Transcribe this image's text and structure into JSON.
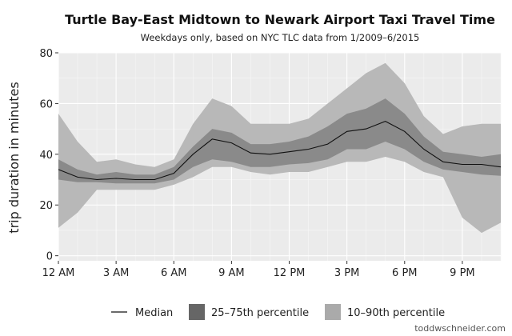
{
  "chart_data": {
    "type": "area",
    "title": "Turtle Bay-East Midtown to Newark Airport Taxi Travel Time",
    "subtitle": "Weekdays only, based on NYC TLC data from 1/2009–6/2015",
    "xlabel": "",
    "ylabel": "trip duration in minutes",
    "xlim": [
      0,
      23
    ],
    "ylim": [
      -2,
      80
    ],
    "yticks": [
      0,
      20,
      40,
      60,
      80
    ],
    "xticks": [
      {
        "x": 0,
        "label": "12 AM"
      },
      {
        "x": 3,
        "label": "3 AM"
      },
      {
        "x": 6,
        "label": "6 AM"
      },
      {
        "x": 9,
        "label": "9 AM"
      },
      {
        "x": 12,
        "label": "12 PM"
      },
      {
        "x": 15,
        "label": "3 PM"
      },
      {
        "x": 18,
        "label": "6 PM"
      },
      {
        "x": 21,
        "label": "9 PM"
      }
    ],
    "grid": true,
    "legend_position": "bottom",
    "x": [
      0,
      1,
      2,
      3,
      4,
      5,
      6,
      7,
      8,
      9,
      10,
      11,
      12,
      13,
      14,
      15,
      16,
      17,
      18,
      19,
      20,
      21,
      22,
      23
    ],
    "median": [
      34,
      31,
      30,
      30.5,
      30,
      30,
      32.5,
      40,
      46,
      44.5,
      40.5,
      40,
      41,
      42,
      44,
      49,
      50,
      53,
      49,
      42,
      37,
      36,
      36,
      35
    ],
    "p25": [
      30,
      29,
      29,
      28.5,
      28.5,
      28.5,
      30,
      35,
      38,
      37,
      35,
      35,
      36,
      36.5,
      38,
      42,
      42,
      45,
      42,
      37,
      34,
      33,
      32,
      31.5
    ],
    "p75": [
      38,
      34,
      32,
      33,
      32,
      32,
      35,
      43,
      50,
      48.5,
      44,
      44,
      45,
      47,
      51,
      56,
      58,
      62,
      56,
      47,
      41,
      40,
      39,
      40
    ],
    "p10": [
      11,
      17,
      26,
      26,
      26,
      26,
      28,
      31,
      35,
      35,
      33,
      32,
      33,
      33,
      35,
      37,
      37,
      39,
      37,
      33,
      31,
      15,
      9,
      13
    ],
    "p90": [
      56,
      45,
      37,
      38,
      36,
      35,
      38,
      52,
      62,
      59,
      52,
      52,
      52,
      54,
      60,
      66,
      72,
      76,
      68,
      55,
      48,
      51,
      52,
      52
    ],
    "series": [
      {
        "name": "Median",
        "color": "#111111"
      },
      {
        "name": "25–75th percentile",
        "color": "#666666"
      },
      {
        "name": "10–90th percentile",
        "color": "#aaaaaa"
      }
    ]
  },
  "colors": {
    "panel_bg": "#ebebeb",
    "band_outer": "#b8b8b8",
    "band_inner": "#8a8a8a",
    "median": "#111111",
    "grid": "#ffffff"
  },
  "credit": "toddwschneider.com"
}
